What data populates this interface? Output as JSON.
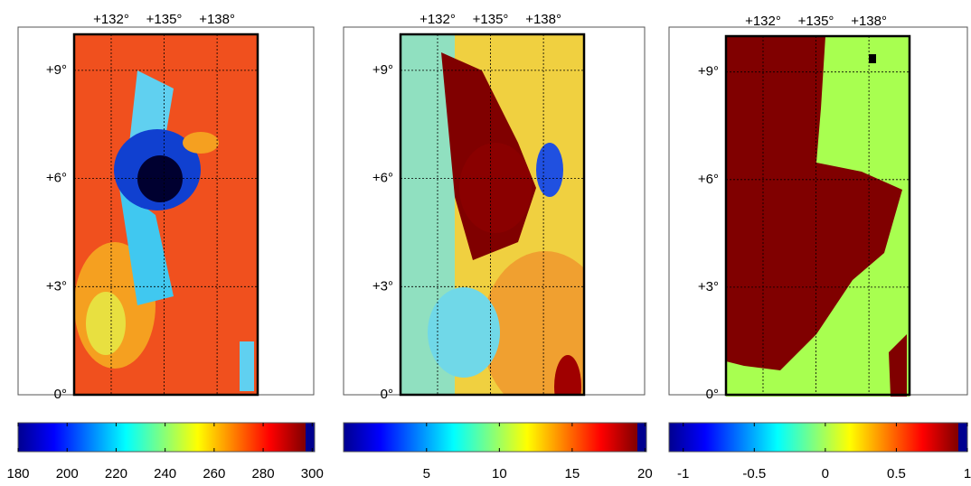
{
  "panels": [
    {
      "xlim": [
        129.9,
        140.3
      ],
      "ylim": [
        0,
        10
      ],
      "xticks": [
        {
          "value": 132,
          "label": "+132°"
        },
        {
          "value": 135,
          "label": "+135°"
        },
        {
          "value": 138,
          "label": "+138°"
        }
      ],
      "yticks": [
        {
          "value": 0,
          "label": "0°"
        },
        {
          "value": 3,
          "label": "+3°"
        },
        {
          "value": 6,
          "label": "+6°"
        },
        {
          "value": 9,
          "label": "+9°"
        }
      ],
      "colorbar": {
        "lim": [
          180,
          301
        ],
        "ticks": [
          180,
          200,
          220,
          240,
          260,
          280,
          300
        ]
      }
    },
    {
      "xlim": [
        129.9,
        140.3
      ],
      "ylim": [
        0,
        10
      ],
      "xticks": [
        {
          "value": 132,
          "label": "+132°"
        },
        {
          "value": 135,
          "label": "+135°"
        },
        {
          "value": 138,
          "label": "+138°"
        }
      ],
      "yticks": [
        {
          "value": 0,
          "label": "0°"
        },
        {
          "value": 3,
          "label": "+3°"
        },
        {
          "value": 6,
          "label": "+6°"
        },
        {
          "value": 9,
          "label": "+9°"
        }
      ],
      "colorbar": {
        "lim": [
          -0.7,
          20.1
        ],
        "ticks": [
          5,
          10,
          15,
          20
        ]
      }
    },
    {
      "xlim": [
        129.9,
        140.3
      ],
      "ylim": [
        0,
        10
      ],
      "xticks": [
        {
          "value": 132,
          "label": "+132°"
        },
        {
          "value": 135,
          "label": "+135°"
        },
        {
          "value": 138,
          "label": "+138°"
        }
      ],
      "yticks": [
        {
          "value": 0,
          "label": "0°"
        },
        {
          "value": 3,
          "label": "+3°"
        },
        {
          "value": 6,
          "label": "+6°"
        },
        {
          "value": 9,
          "label": "+9°"
        }
      ],
      "colorbar": {
        "lim": [
          -1.1,
          1.0
        ],
        "ticks": [
          -1,
          -0.5,
          0,
          0.5,
          1
        ]
      }
    }
  ]
}
